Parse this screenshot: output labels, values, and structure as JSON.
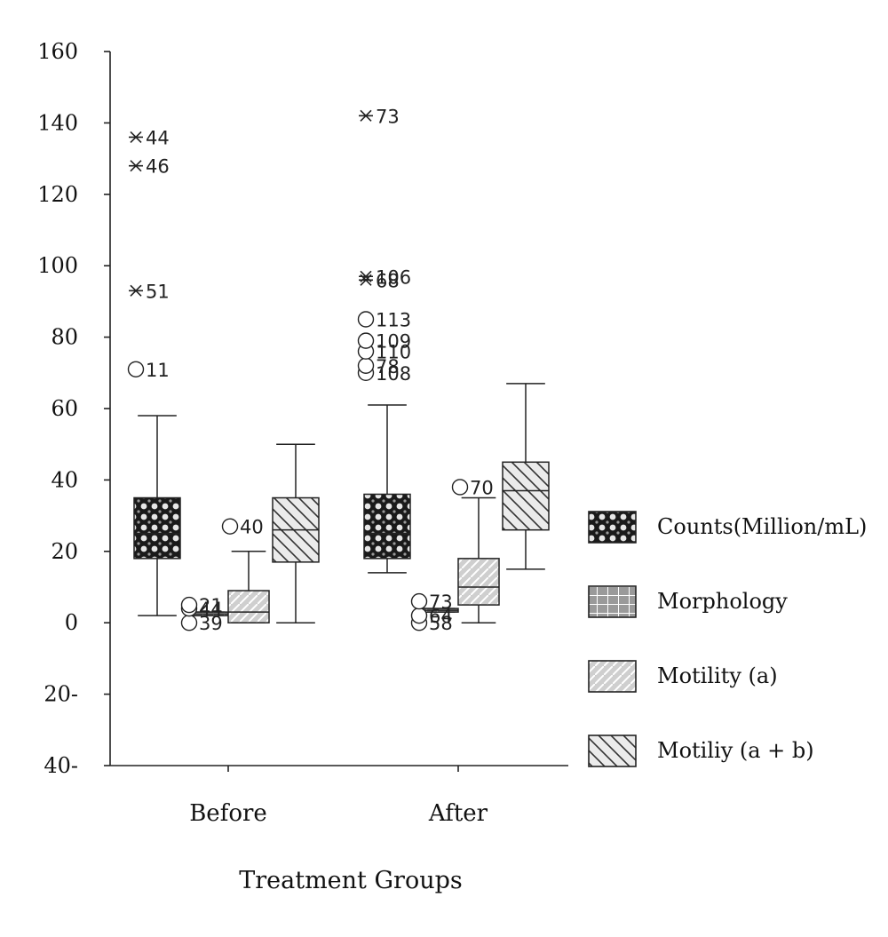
{
  "chart_data": {
    "type": "boxplot",
    "xlabel": "Treatment Groups",
    "ylabel": "",
    "ylim": [
      -40,
      160
    ],
    "y_ticks": [
      {
        "value": 160,
        "label": "160"
      },
      {
        "value": 140,
        "label": "140"
      },
      {
        "value": 120,
        "label": "120"
      },
      {
        "value": 100,
        "label": "100"
      },
      {
        "value": 80,
        "label": "80"
      },
      {
        "value": 60,
        "label": "60"
      },
      {
        "value": 40,
        "label": "40"
      },
      {
        "value": 20,
        "label": "20"
      },
      {
        "value": 0,
        "label": "0"
      },
      {
        "value": -20,
        "label": "20-"
      },
      {
        "value": -40,
        "label": "40-"
      }
    ],
    "categories": [
      "Before",
      "After"
    ],
    "legend_position": "right",
    "series": [
      {
        "name": "Counts(Million/mL)",
        "pattern": "crosshatch-dark",
        "boxes": [
          {
            "category": "Before",
            "min": 2,
            "q1": 18,
            "median": 25,
            "q3": 35,
            "max": 58,
            "outliers": [
              {
                "value": 71,
                "label": "11",
                "marker": "circle"
              },
              {
                "value": 93,
                "label": "51",
                "marker": "star"
              },
              {
                "value": 128,
                "label": "46",
                "marker": "star"
              },
              {
                "value": 136,
                "label": "44",
                "marker": "star"
              }
            ]
          },
          {
            "category": "After",
            "min": 14,
            "q1": 18,
            "median": 25,
            "q3": 36,
            "max": 61,
            "outliers": [
              {
                "value": 70,
                "label": "108",
                "marker": "circle"
              },
              {
                "value": 72,
                "label": "78",
                "marker": "circle"
              },
              {
                "value": 76,
                "label": "110",
                "marker": "circle"
              },
              {
                "value": 79,
                "label": "109",
                "marker": "circle"
              },
              {
                "value": 85,
                "label": "113",
                "marker": "circle"
              },
              {
                "value": 96,
                "label": "68",
                "marker": "star"
              },
              {
                "value": 97,
                "label": "106",
                "marker": "star"
              },
              {
                "value": 142,
                "label": "73",
                "marker": "star"
              }
            ]
          }
        ]
      },
      {
        "name": "Morphology",
        "pattern": "grid",
        "boxes": [
          {
            "category": "Before",
            "min": 2,
            "q1": 2,
            "median": 2.5,
            "q3": 3,
            "max": 3,
            "outliers": [
              {
                "value": 0,
                "label": "39",
                "marker": "circle"
              },
              {
                "value": 4,
                "label": "44",
                "marker": "circle"
              },
              {
                "value": 5,
                "label": "21",
                "marker": "circle"
              }
            ]
          },
          {
            "category": "After",
            "min": 3,
            "q1": 3,
            "median": 3.5,
            "q3": 4,
            "max": 4,
            "outliers": [
              {
                "value": 0,
                "label": "58",
                "marker": "circle"
              },
              {
                "value": 2,
                "label": "64",
                "marker": "circle"
              },
              {
                "value": 6,
                "label": "73",
                "marker": "circle"
              }
            ]
          }
        ]
      },
      {
        "name": "Motility (a)",
        "pattern": "diagonal-light",
        "boxes": [
          {
            "category": "Before",
            "min": 0,
            "q1": 0,
            "median": 3,
            "q3": 9,
            "max": 20,
            "outliers": [
              {
                "value": 27,
                "label": "40",
                "marker": "circle"
              }
            ]
          },
          {
            "category": "After",
            "min": 0,
            "q1": 5,
            "median": 10,
            "q3": 18,
            "max": 35,
            "outliers": [
              {
                "value": 38,
                "label": "70",
                "marker": "circle"
              }
            ]
          }
        ]
      },
      {
        "name": "Motiliy (a + b)",
        "pattern": "diagonal-back",
        "boxes": [
          {
            "category": "Before",
            "min": 0,
            "q1": 17,
            "median": 26,
            "q3": 35,
            "max": 50,
            "outliers": []
          },
          {
            "category": "After",
            "min": 15,
            "q1": 26,
            "median": 37,
            "q3": 45,
            "max": 67,
            "outliers": []
          }
        ]
      }
    ]
  }
}
